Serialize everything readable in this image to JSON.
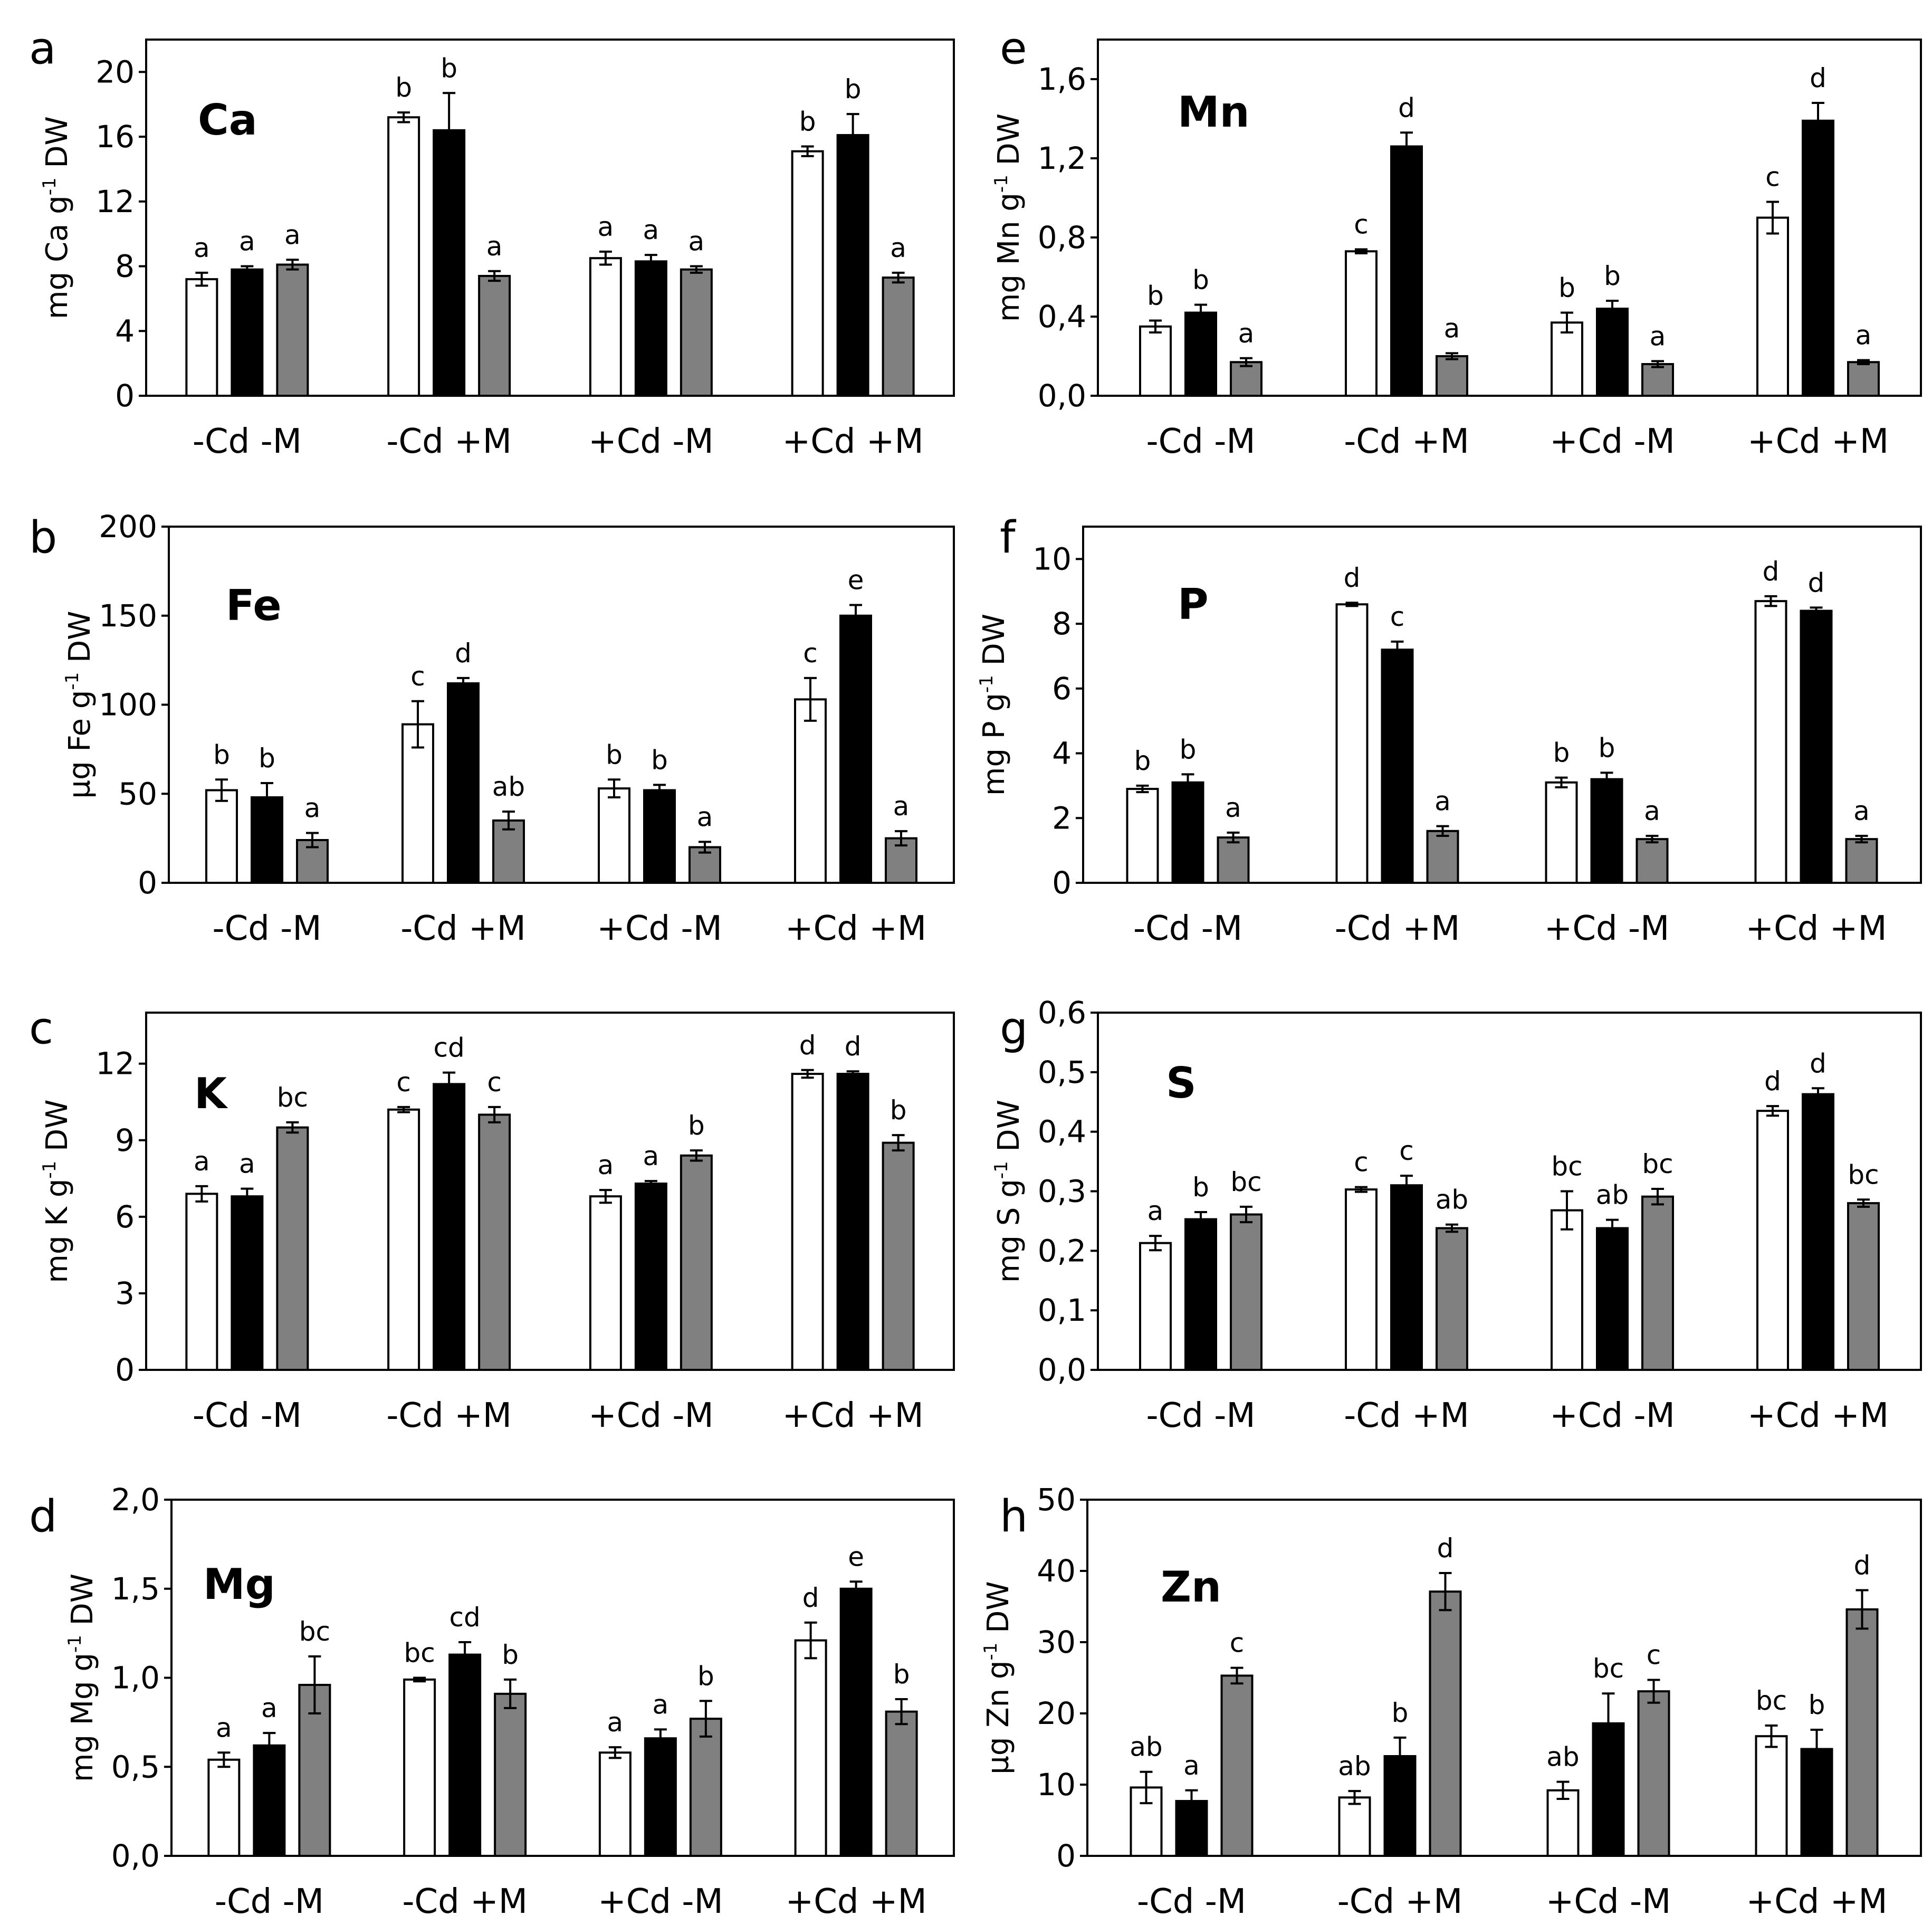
{
  "figure": {
    "legend_colors": {
      "white": "#ffffff",
      "black": "#000000",
      "grey": "#808080"
    }
  },
  "chart_data": [
    {
      "panel": "a",
      "type": "bar",
      "title": "Ca",
      "ylabel": {
        "pre": "mg Ca g",
        "sup": "-1",
        "post": " DW"
      },
      "ylim": [
        0,
        22
      ],
      "yticks": [
        0,
        4,
        8,
        12,
        16,
        20
      ],
      "yticklabels": [
        "0",
        "4",
        "8",
        "12",
        "16",
        "20"
      ],
      "categories": [
        "-Cd -M",
        "-Cd +M",
        "+Cd -M",
        "+Cd +M"
      ],
      "series": [
        {
          "name": "white",
          "color": "#ffffff",
          "values": [
            7.2,
            17.2,
            8.5,
            15.1
          ],
          "errors": [
            0.4,
            0.3,
            0.4,
            0.3
          ],
          "labels": [
            "a",
            "b",
            "a",
            "b"
          ]
        },
        {
          "name": "black",
          "color": "#000000",
          "values": [
            7.8,
            16.4,
            8.3,
            16.1
          ],
          "errors": [
            0.2,
            2.3,
            0.4,
            1.3
          ],
          "labels": [
            "a",
            "b",
            "a",
            "b"
          ]
        },
        {
          "name": "grey",
          "color": "#808080",
          "values": [
            8.1,
            7.4,
            7.8,
            7.3
          ],
          "errors": [
            0.3,
            0.3,
            0.2,
            0.3
          ],
          "labels": [
            "a",
            "a",
            "a",
            "a"
          ]
        }
      ]
    },
    {
      "panel": "b",
      "type": "bar",
      "title": "Fe",
      "ylabel": {
        "pre": "µg Fe g",
        "sup": "-1",
        "post": " DW"
      },
      "ylim": [
        0,
        200
      ],
      "yticks": [
        0,
        50,
        100,
        150,
        200
      ],
      "yticklabels": [
        "0",
        "50",
        "100",
        "150",
        "200"
      ],
      "categories": [
        "-Cd -M",
        "-Cd +M",
        "+Cd -M",
        "+Cd +M"
      ],
      "series": [
        {
          "name": "white",
          "color": "#ffffff",
          "values": [
            52,
            89,
            53,
            103
          ],
          "errors": [
            6,
            13,
            5,
            12
          ],
          "labels": [
            "b",
            "c",
            "b",
            "c"
          ]
        },
        {
          "name": "black",
          "color": "#000000",
          "values": [
            48,
            112,
            52,
            150
          ],
          "errors": [
            8,
            3,
            3,
            6
          ],
          "labels": [
            "b",
            "d",
            "b",
            "e"
          ]
        },
        {
          "name": "grey",
          "color": "#808080",
          "values": [
            24,
            35,
            20,
            25
          ],
          "errors": [
            4,
            5,
            3,
            4
          ],
          "labels": [
            "a",
            "ab",
            "a",
            "a"
          ]
        }
      ]
    },
    {
      "panel": "c",
      "type": "bar",
      "title": "K",
      "ylabel": {
        "pre": "mg K g",
        "sup": "-1",
        "post": " DW"
      },
      "ylim": [
        0,
        14
      ],
      "yticks": [
        0,
        3,
        6,
        9,
        12
      ],
      "yticklabels": [
        "0",
        "3",
        "6",
        "9",
        "12"
      ],
      "categories": [
        "-Cd -M",
        "-Cd +M",
        "+Cd -M",
        "+Cd +M"
      ],
      "series": [
        {
          "name": "white",
          "color": "#ffffff",
          "values": [
            6.9,
            10.2,
            6.8,
            11.6
          ],
          "errors": [
            0.3,
            0.1,
            0.25,
            0.15
          ],
          "labels": [
            "a",
            "c",
            "a",
            "d"
          ]
        },
        {
          "name": "black",
          "color": "#000000",
          "values": [
            6.8,
            11.2,
            7.3,
            11.6
          ],
          "errors": [
            0.3,
            0.45,
            0.1,
            0.1
          ],
          "labels": [
            "a",
            "cd",
            "a",
            "d"
          ]
        },
        {
          "name": "grey",
          "color": "#808080",
          "values": [
            9.5,
            10.0,
            8.4,
            8.9
          ],
          "errors": [
            0.2,
            0.3,
            0.2,
            0.3
          ],
          "labels": [
            "bc",
            "c",
            "b",
            "b"
          ]
        }
      ]
    },
    {
      "panel": "d",
      "type": "bar",
      "title": "Mg",
      "ylabel": {
        "pre": "mg Mg g",
        "sup": "-1",
        "post": " DW"
      },
      "ylim": [
        0,
        2.0
      ],
      "yticks": [
        0,
        0.5,
        1.0,
        1.5,
        2.0
      ],
      "yticklabels": [
        "0,0",
        "0,5",
        "1,0",
        "1,5",
        "2,0"
      ],
      "categories": [
        "-Cd -M",
        "-Cd +M",
        "+Cd -M",
        "+Cd +M"
      ],
      "series": [
        {
          "name": "white",
          "color": "#ffffff",
          "values": [
            0.54,
            0.99,
            0.58,
            1.21
          ],
          "errors": [
            0.04,
            0.01,
            0.03,
            0.1
          ],
          "labels": [
            "a",
            "bc",
            "a",
            "d"
          ]
        },
        {
          "name": "black",
          "color": "#000000",
          "values": [
            0.62,
            1.13,
            0.66,
            1.5
          ],
          "errors": [
            0.07,
            0.07,
            0.05,
            0.04
          ],
          "labels": [
            "a",
            "cd",
            "a",
            "e"
          ]
        },
        {
          "name": "grey",
          "color": "#808080",
          "values": [
            0.96,
            0.91,
            0.77,
            0.81
          ],
          "errors": [
            0.16,
            0.08,
            0.1,
            0.07
          ],
          "labels": [
            "bc",
            "b",
            "b",
            "b"
          ]
        }
      ]
    },
    {
      "panel": "e",
      "type": "bar",
      "title": "Mn",
      "ylabel": {
        "pre": "mg Mn g",
        "sup": "-1",
        "post": " DW"
      },
      "ylim": [
        0,
        1.8
      ],
      "yticks": [
        0,
        0.4,
        0.8,
        1.2,
        1.6
      ],
      "yticklabels": [
        "0,0",
        "0,4",
        "0,8",
        "1,2",
        "1,6"
      ],
      "categories": [
        "-Cd -M",
        "-Cd +M",
        "+Cd -M",
        "+Cd +M"
      ],
      "series": [
        {
          "name": "white",
          "color": "#ffffff",
          "values": [
            0.35,
            0.73,
            0.37,
            0.9
          ],
          "errors": [
            0.03,
            0.01,
            0.05,
            0.08
          ],
          "labels": [
            "b",
            "c",
            "b",
            "c"
          ]
        },
        {
          "name": "black",
          "color": "#000000",
          "values": [
            0.42,
            1.26,
            0.44,
            1.39
          ],
          "errors": [
            0.04,
            0.07,
            0.04,
            0.09
          ],
          "labels": [
            "b",
            "d",
            "b",
            "d"
          ]
        },
        {
          "name": "grey",
          "color": "#808080",
          "values": [
            0.17,
            0.2,
            0.16,
            0.17
          ],
          "errors": [
            0.02,
            0.015,
            0.015,
            0.01
          ],
          "labels": [
            "a",
            "a",
            "a",
            "a"
          ]
        }
      ]
    },
    {
      "panel": "f",
      "type": "bar",
      "title": "P",
      "ylabel": {
        "pre": "mg P g",
        "sup": "-1",
        "post": " DW"
      },
      "ylim": [
        0,
        11
      ],
      "yticks": [
        0,
        2,
        4,
        6,
        8,
        10
      ],
      "yticklabels": [
        "0",
        "2",
        "4",
        "6",
        "8",
        "10"
      ],
      "categories": [
        "-Cd -M",
        "-Cd +M",
        "+Cd -M",
        "+Cd +M"
      ],
      "series": [
        {
          "name": "white",
          "color": "#ffffff",
          "values": [
            2.9,
            8.6,
            3.1,
            8.7
          ],
          "errors": [
            0.1,
            0.05,
            0.15,
            0.15
          ],
          "labels": [
            "b",
            "d",
            "b",
            "d"
          ]
        },
        {
          "name": "black",
          "color": "#000000",
          "values": [
            3.1,
            7.2,
            3.2,
            8.4
          ],
          "errors": [
            0.25,
            0.25,
            0.2,
            0.1
          ],
          "labels": [
            "b",
            "c",
            "b",
            "d"
          ]
        },
        {
          "name": "grey",
          "color": "#808080",
          "values": [
            1.4,
            1.6,
            1.35,
            1.35
          ],
          "errors": [
            0.15,
            0.15,
            0.1,
            0.1
          ],
          "labels": [
            "a",
            "a",
            "a",
            "a"
          ]
        }
      ]
    },
    {
      "panel": "g",
      "type": "bar",
      "title": "S",
      "ylabel": {
        "pre": "mg S g",
        "sup": "-1",
        "post": " DW"
      },
      "ylim": [
        0,
        0.6
      ],
      "yticks": [
        0,
        0.1,
        0.2,
        0.3,
        0.4,
        0.5,
        0.6
      ],
      "yticklabels": [
        "0,0",
        "0,1",
        "0,2",
        "0,3",
        "0,4",
        "0,5",
        "0,6"
      ],
      "categories": [
        "-Cd -M",
        "-Cd +M",
        "+Cd -M",
        "+Cd +M"
      ],
      "series": [
        {
          "name": "white",
          "color": "#ffffff",
          "values": [
            0.213,
            0.303,
            0.268,
            0.435
          ],
          "errors": [
            0.012,
            0.004,
            0.032,
            0.008
          ],
          "labels": [
            "a",
            "c",
            "bc",
            "d"
          ]
        },
        {
          "name": "black",
          "color": "#000000",
          "values": [
            0.253,
            0.31,
            0.238,
            0.463
          ],
          "errors": [
            0.012,
            0.016,
            0.014,
            0.01
          ],
          "labels": [
            "b",
            "c",
            "ab",
            "d"
          ]
        },
        {
          "name": "grey",
          "color": "#808080",
          "values": [
            0.261,
            0.238,
            0.291,
            0.28
          ],
          "errors": [
            0.013,
            0.006,
            0.013,
            0.006
          ],
          "labels": [
            "bc",
            "ab",
            "bc",
            "bc"
          ]
        }
      ]
    },
    {
      "panel": "h",
      "type": "bar",
      "title": "Zn",
      "ylabel": {
        "pre": "µg Zn g",
        "sup": "-1",
        "post": " DW"
      },
      "ylim": [
        0,
        50
      ],
      "yticks": [
        0,
        10,
        20,
        30,
        40,
        50
      ],
      "yticklabels": [
        "0",
        "10",
        "20",
        "30",
        "40",
        "50"
      ],
      "categories": [
        "-Cd -M",
        "-Cd +M",
        "+Cd -M",
        "+Cd +M"
      ],
      "series": [
        {
          "name": "white",
          "color": "#ffffff",
          "values": [
            9.6,
            8.2,
            9.2,
            16.8
          ],
          "errors": [
            2.2,
            0.9,
            1.2,
            1.5
          ],
          "labels": [
            "ab",
            "ab",
            "ab",
            "bc"
          ]
        },
        {
          "name": "black",
          "color": "#000000",
          "values": [
            7.7,
            14.0,
            18.6,
            15.0
          ],
          "errors": [
            1.5,
            2.6,
            4.2,
            2.7
          ],
          "labels": [
            "a",
            "b",
            "bc",
            "b"
          ]
        },
        {
          "name": "grey",
          "color": "#808080",
          "values": [
            25.3,
            37.1,
            23.1,
            34.6
          ],
          "errors": [
            1.1,
            2.6,
            1.6,
            2.7
          ],
          "labels": [
            "c",
            "d",
            "c",
            "d"
          ]
        }
      ]
    }
  ]
}
